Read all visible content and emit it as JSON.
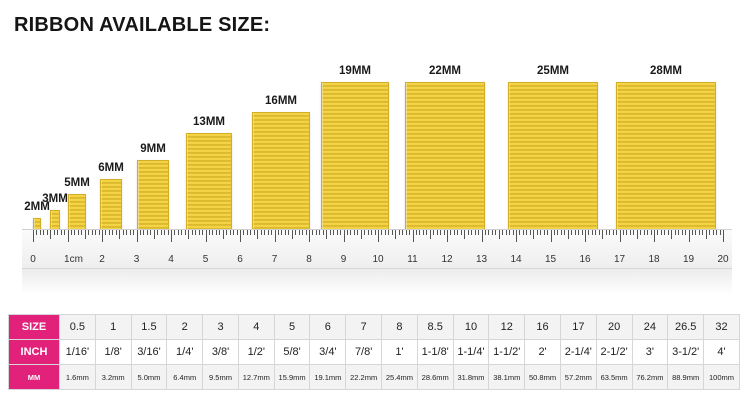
{
  "title": "RIBBON AVAILABLE SIZE:",
  "colors": {
    "ribbon": "#ecc635",
    "row_header": "#e2217a"
  },
  "ribbons": [
    {
      "label": "2MM",
      "width_mm": 2,
      "height": 0.09
    },
    {
      "label": "3MM",
      "width_mm": 3,
      "height": 0.14
    },
    {
      "label": "5MM",
      "width_mm": 5,
      "height": 0.24
    },
    {
      "label": "6MM",
      "width_mm": 6,
      "height": 0.33
    },
    {
      "label": "9MM",
      "width_mm": 9,
      "height": 0.45
    },
    {
      "label": "13MM",
      "width_mm": 13,
      "height": 0.62
    },
    {
      "label": "16MM",
      "width_mm": 16,
      "height": 0.75
    },
    {
      "label": "19MM",
      "width_mm": 19,
      "height": 0.94
    },
    {
      "label": "22MM",
      "width_mm": 22,
      "height": 0.94
    },
    {
      "label": "25MM",
      "width_mm": 25,
      "height": 0.94
    },
    {
      "label": "28MM",
      "width_mm": 28,
      "height": 0.94
    }
  ],
  "ruler": {
    "min": 0,
    "max": 20,
    "labels": [
      "0",
      "1cm",
      "2",
      "3",
      "4",
      "5",
      "6",
      "7",
      "8",
      "9",
      "10",
      "11",
      "12",
      "13",
      "14",
      "15",
      "16",
      "17",
      "18",
      "19",
      "20"
    ]
  },
  "table": {
    "rows": [
      {
        "header": "SIZE",
        "cells": [
          "0.5",
          "1",
          "1.5",
          "2",
          "3",
          "4",
          "5",
          "6",
          "7",
          "8",
          "8.5",
          "10",
          "12",
          "16",
          "17",
          "20",
          "24",
          "26.5",
          "32"
        ]
      },
      {
        "header": "INCH",
        "cells": [
          "1/16'",
          "1/8'",
          "3/16'",
          "1/4'",
          "3/8'",
          "1/2'",
          "5/8'",
          "3/4'",
          "7/8'",
          "1'",
          "1-1/8'",
          "1-1/4'",
          "1-1/2'",
          "2'",
          "2-1/4'",
          "2-1/2'",
          "3'",
          "3-1/2'",
          "4'"
        ]
      },
      {
        "header": "MM",
        "cells": [
          "1.6mm",
          "3.2mm",
          "5.0mm",
          "6.4mm",
          "9.5mm",
          "12.7mm",
          "15.9mm",
          "19.1mm",
          "22.2mm",
          "25.4mm",
          "28.6mm",
          "31.8mm",
          "38.1mm",
          "50.8mm",
          "57.2mm",
          "63.5mm",
          "76.2mm",
          "88.9mm",
          "100mm"
        ]
      }
    ]
  }
}
